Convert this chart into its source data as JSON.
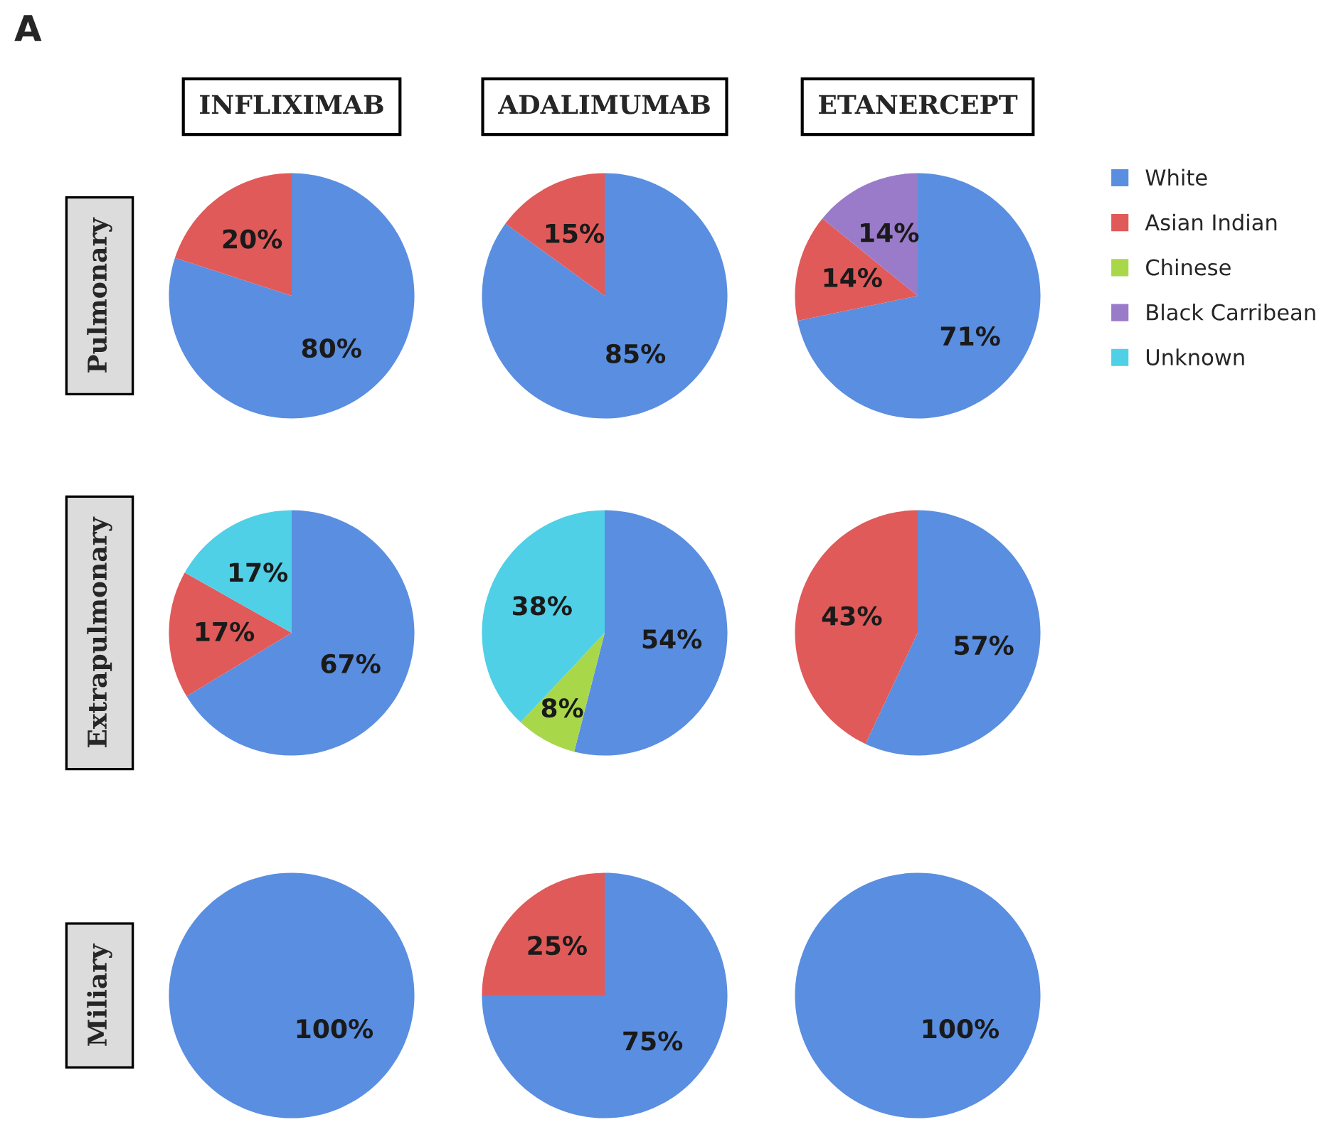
{
  "chart_data": [
    {
      "type": "pie",
      "title": "INFLIXIMAB",
      "ylabel": "Pulmonary",
      "annotations": [
        "A"
      ],
      "categories": [
        "White",
        "Asian Indian",
        "Chinese",
        "Black Carribean",
        "Unknown"
      ],
      "values": [
        80,
        20,
        0,
        0,
        0
      ],
      "value_labels": [
        "80%",
        "20%",
        null,
        null,
        null
      ],
      "colors": [
        "#5a8ee0",
        "#e05a5a",
        "#a8d84a",
        "#9a7bc9",
        "#4fd0e6"
      ],
      "legend": "right"
    },
    {
      "type": "pie",
      "title": "ADALIMUMAB",
      "categories": [
        null,
        null,
        null,
        null,
        null
      ],
      "values": [
        85,
        15,
        0,
        0,
        0
      ],
      "value_labels": [
        "85%",
        "15%",
        null,
        null,
        null
      ],
      "colors": [
        "#5a8ee0",
        "#e05a5a",
        "#a8d84a",
        "#9a7bc9",
        "#4fd0e6"
      ],
      "legend": false
    },
    {
      "type": "pie",
      "title": "ETANERCEPT",
      "categories": [
        null,
        null,
        null,
        null,
        null
      ],
      "values": [
        71,
        14,
        0,
        14,
        0
      ],
      "value_labels": [
        "71%",
        "14%",
        null,
        "14%",
        null
      ],
      "colors": [
        "#5a8ee0",
        "#e05a5a",
        "#a8d84a",
        "#9a7bc9",
        "#4fd0e6"
      ],
      "legend": false
    },
    {
      "type": "pie",
      "ylabel": "Extrapulmonary",
      "categories": [
        null,
        null,
        null,
        null,
        null
      ],
      "values": [
        67,
        17,
        0,
        0,
        17
      ],
      "value_labels": [
        "67%",
        "17%",
        null,
        null,
        "17%"
      ],
      "colors": [
        "#5a8ee0",
        "#e05a5a",
        "#a8d84a",
        "#9a7bc9",
        "#4fd0e6"
      ],
      "legend": false
    },
    {
      "type": "pie",
      "categories": [
        null,
        null,
        null,
        null,
        null
      ],
      "values": [
        54,
        0,
        8,
        0,
        38
      ],
      "value_labels": [
        "54%",
        null,
        "8%",
        null,
        "38%"
      ],
      "colors": [
        "#5a8ee0",
        "#e05a5a",
        "#a8d84a",
        "#9a7bc9",
        "#4fd0e6"
      ],
      "legend": false
    },
    {
      "type": "pie",
      "categories": [
        null,
        null,
        null,
        null,
        null
      ],
      "values": [
        57,
        43,
        0,
        0,
        0
      ],
      "value_labels": [
        "57%",
        "43%",
        null,
        null,
        null
      ],
      "colors": [
        "#5a8ee0",
        "#e05a5a",
        "#a8d84a",
        "#9a7bc9",
        "#4fd0e6"
      ],
      "legend": false
    },
    {
      "type": "pie",
      "ylabel": "Miliary",
      "categories": [
        null,
        null,
        null,
        null,
        null
      ],
      "values": [
        100,
        0,
        0,
        0,
        0
      ],
      "value_labels": [
        "100%",
        null,
        null,
        null,
        null
      ],
      "colors": [
        "#5a8ee0",
        "#e05a5a",
        "#a8d84a",
        "#9a7bc9",
        "#4fd0e6"
      ],
      "legend": false
    },
    {
      "type": "pie",
      "categories": [
        null,
        null,
        null,
        null,
        null
      ],
      "values": [
        75,
        25,
        0,
        0,
        0
      ],
      "value_labels": [
        "75%",
        "25%",
        null,
        null,
        null
      ],
      "colors": [
        "#5a8ee0",
        "#e05a5a",
        "#a8d84a",
        "#9a7bc9",
        "#4fd0e6"
      ],
      "legend": false
    },
    {
      "type": "pie",
      "categories": [
        null,
        null,
        null,
        null,
        null
      ],
      "values": [
        100,
        0,
        0,
        0,
        0
      ],
      "value_labels": [
        "100%",
        null,
        null,
        null,
        null
      ],
      "colors": [
        "#5a8ee0",
        "#e05a5a",
        "#a8d84a",
        "#9a7bc9",
        "#4fd0e6"
      ],
      "legend": false
    }
  ]
}
